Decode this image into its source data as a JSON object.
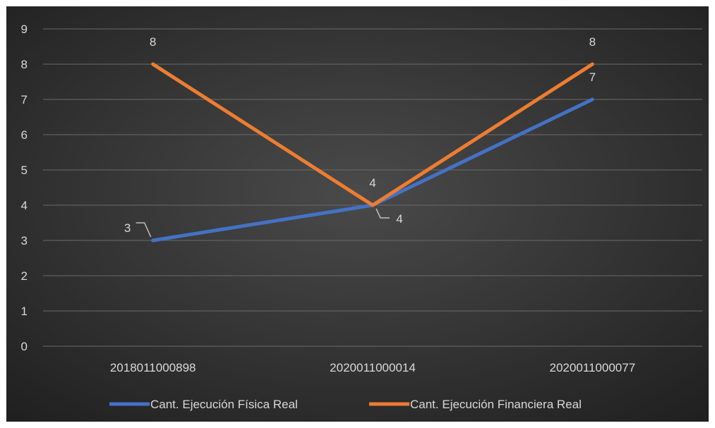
{
  "chart_data": {
    "type": "line",
    "title": "",
    "xlabel": "",
    "ylabel": "",
    "categories": [
      "2018011000898",
      "2020011000014",
      "2020011000077"
    ],
    "ylim": [
      0,
      9
    ],
    "yticks": [
      "0",
      "1",
      "2",
      "3",
      "4",
      "5",
      "6",
      "7",
      "8",
      "9"
    ],
    "grid": true,
    "legend_position": "bottom",
    "background_color": "#1f1f1f",
    "series": [
      {
        "name": "Cant. Ejecución Física Real",
        "color": "#4472c4",
        "values": [
          3,
          4,
          7
        ],
        "labels": [
          "3",
          "4",
          "7"
        ]
      },
      {
        "name": "Cant. Ejecución Financiera Real",
        "color": "#ed7d31",
        "values": [
          8,
          4,
          8
        ],
        "labels": [
          "8",
          "4",
          "8"
        ]
      }
    ]
  }
}
